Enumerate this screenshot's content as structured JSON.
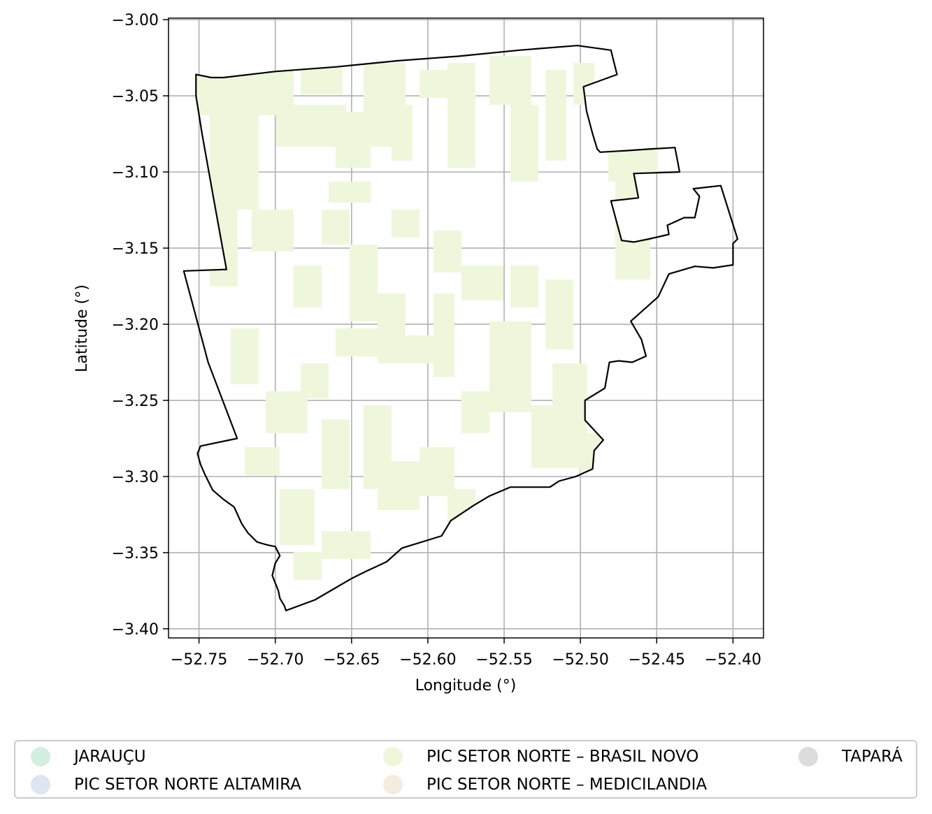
{
  "chart_data": {
    "type": "map",
    "xlabel": "Longitude (°)",
    "ylabel": "Latitude (°)",
    "xlim": [
      -52.77,
      -52.38
    ],
    "ylim": [
      -3.406,
      -2.999
    ],
    "xticks": [
      -52.75,
      -52.7,
      -52.65,
      -52.6,
      -52.55,
      -52.5,
      -52.45,
      -52.4
    ],
    "xtick_labels": [
      "−52.75",
      "−52.70",
      "−52.65",
      "−52.60",
      "−52.55",
      "−52.50",
      "−52.45",
      "−52.40"
    ],
    "yticks": [
      -3.0,
      -3.05,
      -3.1,
      -3.15,
      -3.2,
      -3.25,
      -3.3,
      -3.35,
      -3.4
    ],
    "ytick_labels": [
      "−3.00",
      "−3.05",
      "−3.10",
      "−3.15",
      "−3.20",
      "−3.25",
      "−3.30",
      "−3.35",
      "−3.40"
    ],
    "grid": true,
    "legend_position": "bottom",
    "boundary_color": "#000000",
    "fill_region": "PIC SETOR NORTE – BRASIL NOVO",
    "boundary": [
      [
        -52.752,
        -3.036
      ],
      [
        -52.742,
        -3.038
      ],
      [
        -52.734,
        -3.038
      ],
      [
        -52.7,
        -3.034
      ],
      [
        -52.66,
        -3.031
      ],
      [
        -52.62,
        -3.027
      ],
      [
        -52.58,
        -3.024
      ],
      [
        -52.54,
        -3.02
      ],
      [
        -52.502,
        -3.017
      ],
      [
        -52.48,
        -3.02
      ],
      [
        -52.476,
        -3.036
      ],
      [
        -52.498,
        -3.044
      ],
      [
        -52.496,
        -3.06
      ],
      [
        -52.492,
        -3.075
      ],
      [
        -52.489,
        -3.085
      ],
      [
        -52.487,
        -3.087
      ],
      [
        -52.47,
        -3.086
      ],
      [
        -52.455,
        -3.085
      ],
      [
        -52.438,
        -3.084
      ],
      [
        -52.435,
        -3.1
      ],
      [
        -52.465,
        -3.101
      ],
      [
        -52.462,
        -3.117
      ],
      [
        -52.48,
        -3.119
      ],
      [
        -52.473,
        -3.145
      ],
      [
        -52.465,
        -3.146
      ],
      [
        -52.455,
        -3.144
      ],
      [
        -52.442,
        -3.141
      ],
      [
        -52.443,
        -3.135
      ],
      [
        -52.432,
        -3.13
      ],
      [
        -52.425,
        -3.13
      ],
      [
        -52.422,
        -3.116
      ],
      [
        -52.426,
        -3.111
      ],
      [
        -52.408,
        -3.109
      ],
      [
        -52.397,
        -3.144
      ],
      [
        -52.4,
        -3.147
      ],
      [
        -52.4,
        -3.161
      ],
      [
        -52.413,
        -3.163
      ],
      [
        -52.425,
        -3.162
      ],
      [
        -52.442,
        -3.167
      ],
      [
        -52.449,
        -3.182
      ],
      [
        -52.467,
        -3.198
      ],
      [
        -52.46,
        -3.21
      ],
      [
        -52.457,
        -3.221
      ],
      [
        -52.466,
        -3.225
      ],
      [
        -52.475,
        -3.224
      ],
      [
        -52.481,
        -3.225
      ],
      [
        -52.484,
        -3.242
      ],
      [
        -52.497,
        -3.25
      ],
      [
        -52.497,
        -3.263
      ],
      [
        -52.485,
        -3.276
      ],
      [
        -52.491,
        -3.283
      ],
      [
        -52.492,
        -3.295
      ],
      [
        -52.503,
        -3.3
      ],
      [
        -52.514,
        -3.303
      ],
      [
        -52.52,
        -3.307
      ],
      [
        -52.546,
        -3.307
      ],
      [
        -52.56,
        -3.313
      ],
      [
        -52.57,
        -3.319
      ],
      [
        -52.585,
        -3.329
      ],
      [
        -52.591,
        -3.339
      ],
      [
        -52.617,
        -3.347
      ],
      [
        -52.627,
        -3.356
      ],
      [
        -52.64,
        -3.362
      ],
      [
        -52.65,
        -3.367
      ],
      [
        -52.674,
        -3.381
      ],
      [
        -52.693,
        -3.388
      ],
      [
        -52.694,
        -3.385
      ],
      [
        -52.697,
        -3.38
      ],
      [
        -52.698,
        -3.375
      ],
      [
        -52.702,
        -3.365
      ],
      [
        -52.7,
        -3.357
      ],
      [
        -52.697,
        -3.352
      ],
      [
        -52.7,
        -3.346
      ],
      [
        -52.705,
        -3.345
      ],
      [
        -52.712,
        -3.343
      ],
      [
        -52.718,
        -3.337
      ],
      [
        -52.722,
        -3.331
      ],
      [
        -52.727,
        -3.32
      ],
      [
        -52.734,
        -3.315
      ],
      [
        -52.741,
        -3.309
      ],
      [
        -52.746,
        -3.299
      ],
      [
        -52.749,
        -3.292
      ],
      [
        -52.751,
        -3.285
      ],
      [
        -52.749,
        -3.28
      ],
      [
        -52.725,
        -3.275
      ],
      [
        -52.744,
        -3.225
      ],
      [
        -52.76,
        -3.165
      ],
      [
        -52.732,
        -3.164
      ],
      [
        -52.74,
        -3.12
      ],
      [
        -52.748,
        -3.075
      ],
      [
        -52.752,
        -3.05
      ],
      [
        -52.752,
        -3.036
      ]
    ]
  },
  "legend": {
    "items": [
      {
        "label": "JARAUÇU",
        "color": "#d4eedf"
      },
      {
        "label": "PIC SETOR NORTE ALTAMIRA",
        "color": "#dfe4f2"
      },
      {
        "label": "PIC SETOR NORTE – BRASIL NOVO",
        "color": "#eef7dc"
      },
      {
        "label": "PIC SETOR NORTE – MEDICILANDIA",
        "color": "#f5ece0"
      },
      {
        "label": "TAPARÁ",
        "color": "#dcdcdc"
      }
    ]
  }
}
